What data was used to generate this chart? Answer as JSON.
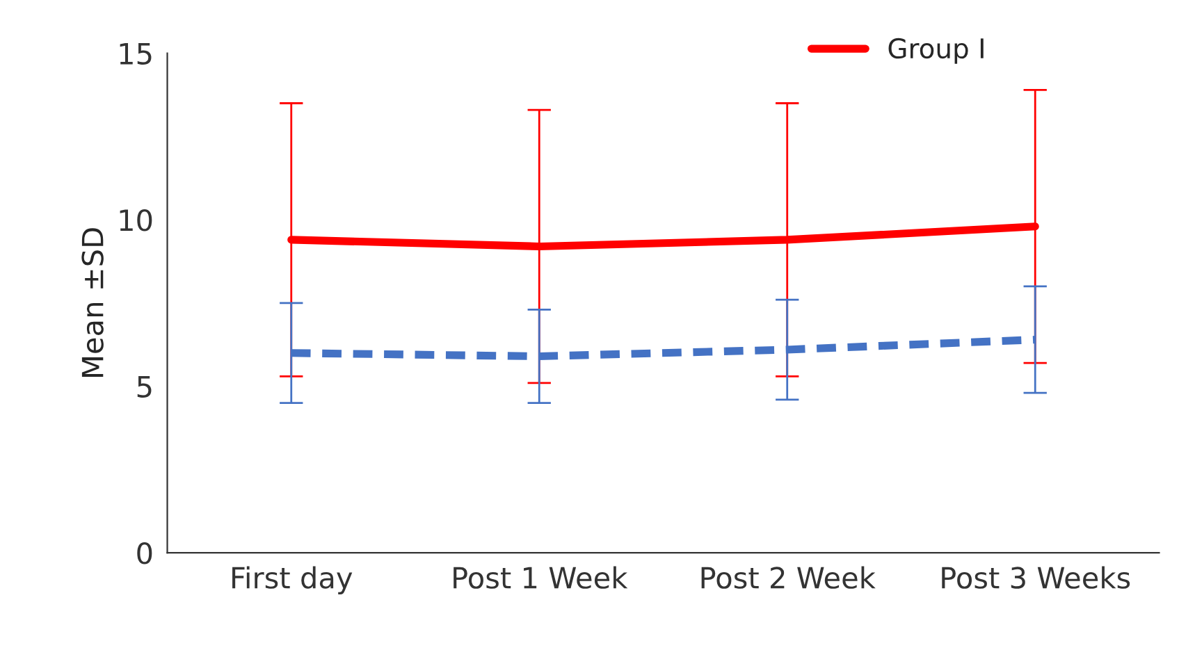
{
  "chart_data": {
    "type": "line",
    "ylabel": "Mean ±SD",
    "categories": [
      "First day",
      "Post 1 Week",
      "Post 2 Week",
      "Post 3 Weeks"
    ],
    "series": [
      {
        "name": "Group I",
        "color": "#ff0000",
        "values": [
          9.4,
          9.2,
          9.4,
          9.8
        ],
        "errors": [
          4.1,
          4.1,
          4.1,
          4.1
        ],
        "line_style": "solid"
      },
      {
        "color": "#4472c4",
        "values": [
          6.0,
          5.9,
          6.1,
          6.4
        ],
        "errors": [
          1.5,
          1.4,
          1.5,
          1.6
        ],
        "line_style": "dashed"
      }
    ],
    "ylim": [
      0,
      15
    ],
    "yticks": [
      0,
      5,
      10,
      15
    ],
    "legend": "top right",
    "marker": "none"
  }
}
